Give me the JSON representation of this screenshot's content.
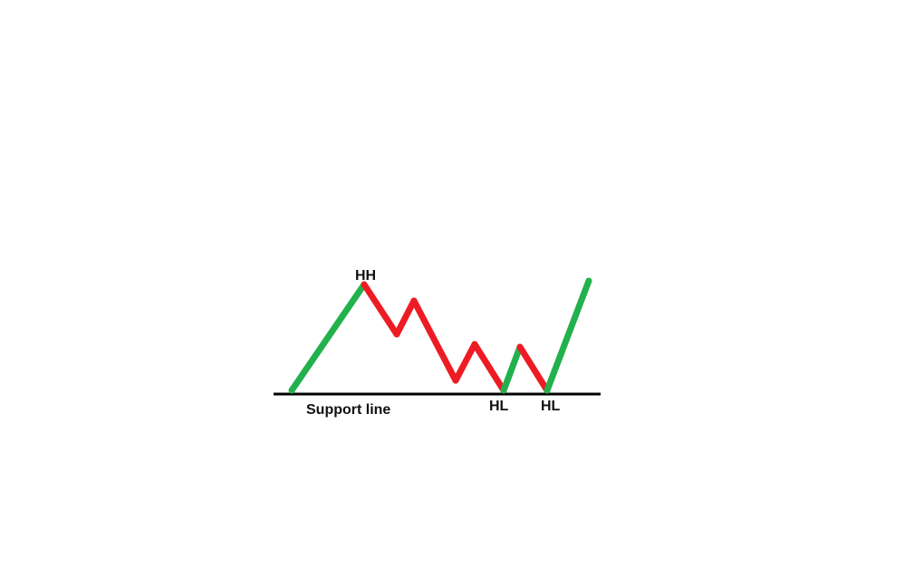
{
  "colors": {
    "background": "#ffffff",
    "up_move": "#22b14c",
    "down_move": "#ed1c24",
    "support_line": "#000000",
    "label_text": "#111111"
  },
  "labels": {
    "higher_high": "HH",
    "support": "Support line",
    "higher_low_1": "HL",
    "higher_low_2": "HL"
  },
  "legs": [
    {
      "direction": "up",
      "color_key": "up_move"
    },
    {
      "direction": "down",
      "color_key": "down_move"
    },
    {
      "direction": "up",
      "color_key": "down_move"
    },
    {
      "direction": "down",
      "color_key": "down_move"
    },
    {
      "direction": "up",
      "color_key": "down_move"
    },
    {
      "direction": "down",
      "color_key": "down_move"
    },
    {
      "direction": "up",
      "color_key": "up_move"
    },
    {
      "direction": "down",
      "color_key": "down_move"
    },
    {
      "direction": "up",
      "color_key": "up_move"
    }
  ]
}
